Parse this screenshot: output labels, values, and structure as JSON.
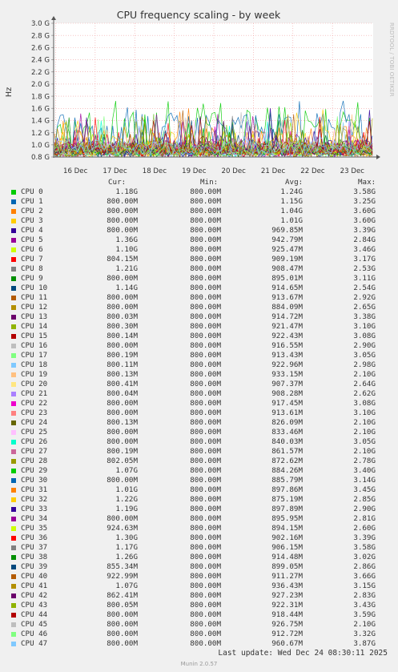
{
  "chart_data": {
    "type": "line",
    "title": "CPU frequency scaling - by week",
    "ylabel": "Hz",
    "watermark": "RRDTOOL / TOBI OETIKER",
    "ylim": [
      0.8,
      3.0
    ],
    "y_ticks": [
      "3.0 G",
      "2.8 G",
      "2.6 G",
      "2.4 G",
      "2.2 G",
      "2.0 G",
      "1.8 G",
      "1.6 G",
      "1.4 G",
      "1.2 G",
      "1.0 G",
      "0.8 G"
    ],
    "x_ticks": [
      "16 Dec",
      "17 Dec",
      "18 Dec",
      "19 Dec",
      "20 Dec",
      "21 Dec",
      "22 Dec",
      "23 Dec"
    ],
    "grid": true,
    "legend_columns": [
      "Cur:",
      "Min:",
      "Avg:",
      "Max:"
    ],
    "series": [
      {
        "name": "CPU 0",
        "color": "#00cc00",
        "cur": "1.18G",
        "min": "800.00M",
        "avg": "1.24G",
        "max": "3.58G"
      },
      {
        "name": "CPU 1",
        "color": "#0066b3",
        "cur": "800.00M",
        "min": "800.00M",
        "avg": "1.15G",
        "max": "3.25G"
      },
      {
        "name": "CPU 2",
        "color": "#ff8000",
        "cur": "800.00M",
        "min": "800.00M",
        "avg": "1.04G",
        "max": "3.60G"
      },
      {
        "name": "CPU 3",
        "color": "#ffcc00",
        "cur": "800.00M",
        "min": "800.00M",
        "avg": "1.01G",
        "max": "3.60G"
      },
      {
        "name": "CPU 4",
        "color": "#330099",
        "cur": "800.00M",
        "min": "800.00M",
        "avg": "969.85M",
        "max": "3.39G"
      },
      {
        "name": "CPU 5",
        "color": "#990099",
        "cur": "1.36G",
        "min": "800.00M",
        "avg": "942.79M",
        "max": "2.84G"
      },
      {
        "name": "CPU 6",
        "color": "#ccff00",
        "cur": "1.10G",
        "min": "800.00M",
        "avg": "925.47M",
        "max": "3.46G"
      },
      {
        "name": "CPU 7",
        "color": "#ff0000",
        "cur": "804.15M",
        "min": "800.00M",
        "avg": "909.19M",
        "max": "3.17G"
      },
      {
        "name": "CPU 8",
        "color": "#808080",
        "cur": "1.21G",
        "min": "800.00M",
        "avg": "908.47M",
        "max": "2.53G"
      },
      {
        "name": "CPU 9",
        "color": "#008f00",
        "cur": "800.00M",
        "min": "800.00M",
        "avg": "895.01M",
        "max": "3.11G"
      },
      {
        "name": "CPU 10",
        "color": "#00487d",
        "cur": "1.14G",
        "min": "800.00M",
        "avg": "914.65M",
        "max": "2.54G"
      },
      {
        "name": "CPU 11",
        "color": "#b35a00",
        "cur": "800.00M",
        "min": "800.00M",
        "avg": "913.67M",
        "max": "2.92G"
      },
      {
        "name": "CPU 12",
        "color": "#b38f00",
        "cur": "800.00M",
        "min": "800.00M",
        "avg": "884.09M",
        "max": "2.65G"
      },
      {
        "name": "CPU 13",
        "color": "#6b006b",
        "cur": "800.03M",
        "min": "800.00M",
        "avg": "914.72M",
        "max": "3.38G"
      },
      {
        "name": "CPU 14",
        "color": "#8fb300",
        "cur": "800.30M",
        "min": "800.00M",
        "avg": "921.47M",
        "max": "3.10G"
      },
      {
        "name": "CPU 15",
        "color": "#b30000",
        "cur": "800.14M",
        "min": "800.00M",
        "avg": "922.43M",
        "max": "3.08G"
      },
      {
        "name": "CPU 16",
        "color": "#bebebe",
        "cur": "800.00M",
        "min": "800.00M",
        "avg": "916.55M",
        "max": "2.90G"
      },
      {
        "name": "CPU 17",
        "color": "#80ff80",
        "cur": "800.19M",
        "min": "800.00M",
        "avg": "913.43M",
        "max": "3.05G"
      },
      {
        "name": "CPU 18",
        "color": "#80c9ff",
        "cur": "800.11M",
        "min": "800.00M",
        "avg": "922.96M",
        "max": "2.98G"
      },
      {
        "name": "CPU 19",
        "color": "#ffc080",
        "cur": "800.13M",
        "min": "800.00M",
        "avg": "933.15M",
        "max": "2.10G"
      },
      {
        "name": "CPU 20",
        "color": "#ffe680",
        "cur": "800.41M",
        "min": "800.00M",
        "avg": "907.37M",
        "max": "2.64G"
      },
      {
        "name": "CPU 21",
        "color": "#aa80ff",
        "cur": "800.04M",
        "min": "800.00M",
        "avg": "908.28M",
        "max": "2.62G"
      },
      {
        "name": "CPU 22",
        "color": "#ee00cc",
        "cur": "800.00M",
        "min": "800.00M",
        "avg": "917.45M",
        "max": "3.08G"
      },
      {
        "name": "CPU 23",
        "color": "#ff8080",
        "cur": "800.00M",
        "min": "800.00M",
        "avg": "913.61M",
        "max": "3.10G"
      },
      {
        "name": "CPU 24",
        "color": "#666600",
        "cur": "800.13M",
        "min": "800.00M",
        "avg": "826.09M",
        "max": "2.10G"
      },
      {
        "name": "CPU 25",
        "color": "#ffbfff",
        "cur": "800.00M",
        "min": "800.00M",
        "avg": "833.46M",
        "max": "2.10G"
      },
      {
        "name": "CPU 26",
        "color": "#00ffcc",
        "cur": "800.00M",
        "min": "800.00M",
        "avg": "840.03M",
        "max": "3.05G"
      },
      {
        "name": "CPU 27",
        "color": "#cc6699",
        "cur": "800.19M",
        "min": "800.00M",
        "avg": "861.57M",
        "max": "2.10G"
      },
      {
        "name": "CPU 28",
        "color": "#999900",
        "cur": "802.05M",
        "min": "800.00M",
        "avg": "872.62M",
        "max": "2.78G"
      },
      {
        "name": "CPU 29",
        "color": "#00cc00",
        "cur": "1.07G",
        "min": "800.00M",
        "avg": "884.26M",
        "max": "3.40G"
      },
      {
        "name": "CPU 30",
        "color": "#0066b3",
        "cur": "800.00M",
        "min": "800.00M",
        "avg": "885.79M",
        "max": "3.14G"
      },
      {
        "name": "CPU 31",
        "color": "#ff8000",
        "cur": "1.01G",
        "min": "800.00M",
        "avg": "897.86M",
        "max": "3.45G"
      },
      {
        "name": "CPU 32",
        "color": "#ffcc00",
        "cur": "1.22G",
        "min": "800.00M",
        "avg": "875.19M",
        "max": "2.85G"
      },
      {
        "name": "CPU 33",
        "color": "#330099",
        "cur": "1.19G",
        "min": "800.00M",
        "avg": "897.89M",
        "max": "2.90G"
      },
      {
        "name": "CPU 34",
        "color": "#990099",
        "cur": "800.00M",
        "min": "800.00M",
        "avg": "895.95M",
        "max": "2.81G"
      },
      {
        "name": "CPU 35",
        "color": "#ccff00",
        "cur": "924.63M",
        "min": "800.00M",
        "avg": "894.15M",
        "max": "2.60G"
      },
      {
        "name": "CPU 36",
        "color": "#ff0000",
        "cur": "1.30G",
        "min": "800.00M",
        "avg": "902.16M",
        "max": "3.39G"
      },
      {
        "name": "CPU 37",
        "color": "#808080",
        "cur": "1.17G",
        "min": "800.00M",
        "avg": "906.15M",
        "max": "3.58G"
      },
      {
        "name": "CPU 38",
        "color": "#008f00",
        "cur": "1.26G",
        "min": "800.00M",
        "avg": "914.48M",
        "max": "3.02G"
      },
      {
        "name": "CPU 39",
        "color": "#00487d",
        "cur": "855.34M",
        "min": "800.00M",
        "avg": "899.05M",
        "max": "2.86G"
      },
      {
        "name": "CPU 40",
        "color": "#b35a00",
        "cur": "922.99M",
        "min": "800.00M",
        "avg": "911.27M",
        "max": "3.66G"
      },
      {
        "name": "CPU 41",
        "color": "#b38f00",
        "cur": "1.07G",
        "min": "800.00M",
        "avg": "936.43M",
        "max": "3.15G"
      },
      {
        "name": "CPU 42",
        "color": "#6b006b",
        "cur": "862.41M",
        "min": "800.00M",
        "avg": "927.23M",
        "max": "2.83G"
      },
      {
        "name": "CPU 43",
        "color": "#8fb300",
        "cur": "800.05M",
        "min": "800.00M",
        "avg": "922.31M",
        "max": "3.43G"
      },
      {
        "name": "CPU 44",
        "color": "#b30000",
        "cur": "800.00M",
        "min": "800.00M",
        "avg": "918.44M",
        "max": "3.59G"
      },
      {
        "name": "CPU 45",
        "color": "#bebebe",
        "cur": "800.00M",
        "min": "800.00M",
        "avg": "926.75M",
        "max": "2.10G"
      },
      {
        "name": "CPU 46",
        "color": "#80ff80",
        "cur": "800.00M",
        "min": "800.00M",
        "avg": "912.72M",
        "max": "3.32G"
      },
      {
        "name": "CPU 47",
        "color": "#80c9ff",
        "cur": "800.00M",
        "min": "800.00M",
        "avg": "960.67M",
        "max": "3.87G"
      }
    ]
  },
  "footer": {
    "last_update": "Last update: Wed Dec 24 08:30:11 2025",
    "munin_version": "Munin 2.0.57"
  }
}
